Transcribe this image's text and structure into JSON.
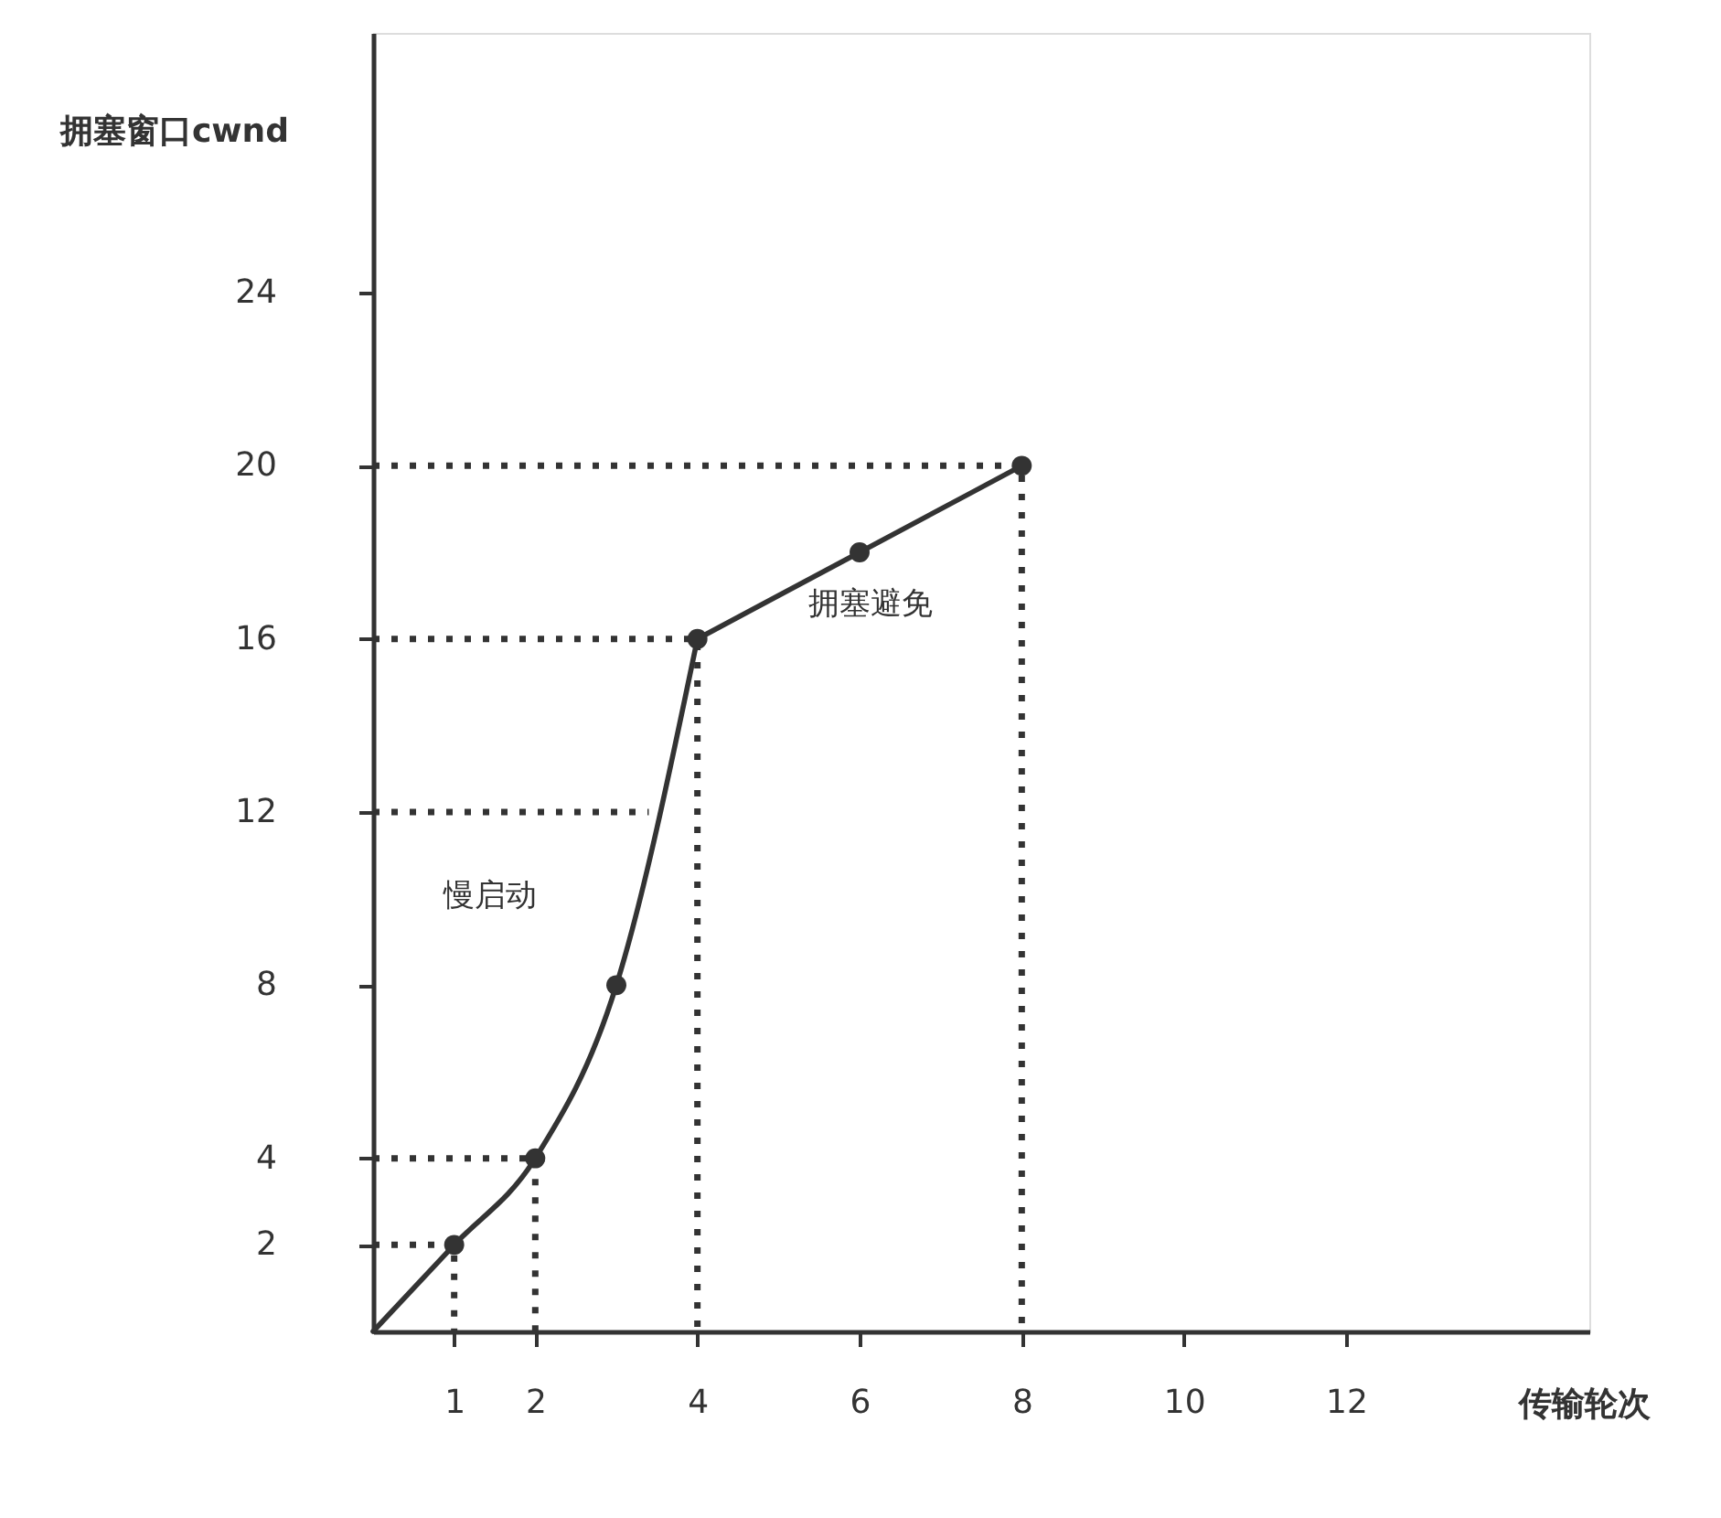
{
  "chart_data": {
    "type": "line",
    "xlabel": "传输轮次",
    "ylabel": "拥塞窗口cwnd",
    "xlim": [
      0,
      15
    ],
    "ylim": [
      0,
      30
    ],
    "xticks": [
      1,
      2,
      4,
      6,
      8,
      10,
      12
    ],
    "yticks": [
      2,
      4,
      8,
      12,
      16,
      20,
      24
    ],
    "annotations": [
      "慢启动",
      "拥塞避免"
    ],
    "series": [
      {
        "color": "#333333",
        "line_style": "dotted",
        "x": [
          0,
          1,
          1
        ],
        "values": [
          2,
          2,
          0
        ]
      },
      {
        "color": "#333333",
        "line_style": "dotted",
        "x": [
          0,
          2,
          2
        ],
        "values": [
          4,
          4,
          0
        ]
      },
      {
        "color": "#333333",
        "line_style": "dotted",
        "x": [
          0,
          3.4
        ],
        "values": [
          12,
          12
        ]
      },
      {
        "color": "#333333",
        "line_style": "dotted",
        "x": [
          0,
          4,
          4
        ],
        "values": [
          16,
          16,
          0
        ]
      },
      {
        "color": "#333333",
        "line_style": "dotted",
        "x": [
          0,
          8,
          8
        ],
        "values": [
          20,
          20,
          0
        ]
      },
      {
        "color": "#333333",
        "x": [
          0,
          1,
          2,
          3,
          4
        ],
        "values": [
          0,
          2,
          4,
          8,
          16
        ]
      },
      {
        "color": "#333333",
        "x": [
          4,
          6,
          8
        ],
        "values": [
          16,
          18,
          20
        ]
      },
      {
        "type": "scatter",
        "color": "#333333",
        "marker": "circle",
        "x": [
          1,
          2,
          3,
          4,
          6,
          8
        ],
        "values": [
          2,
          4,
          8,
          16,
          18,
          20
        ]
      }
    ]
  }
}
